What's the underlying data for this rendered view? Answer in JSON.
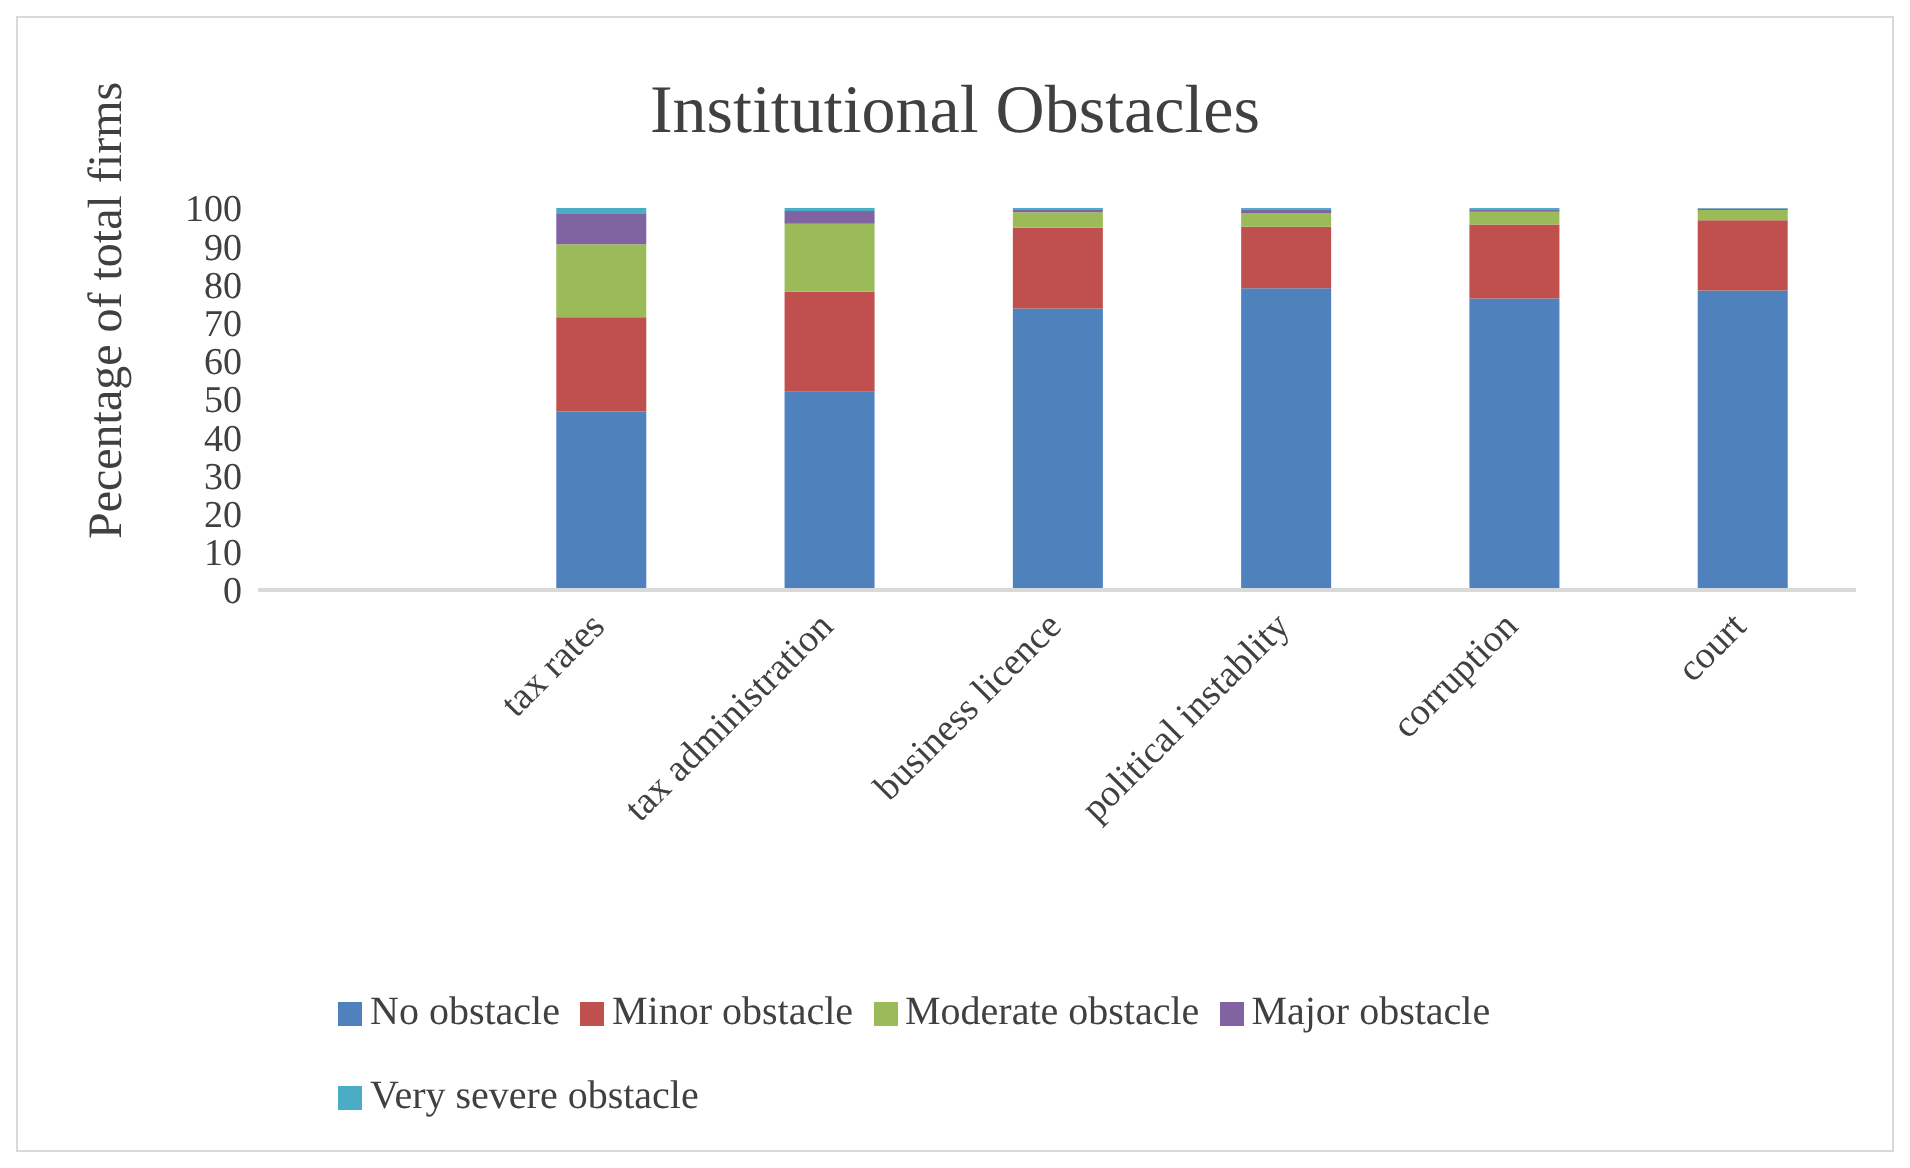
{
  "chart_data": {
    "type": "bar",
    "title": "Institutional Obstacles",
    "ylabel": "Pecentage of total firms",
    "categories": [
      null,
      "tax rates",
      "tax administration",
      "business licence",
      "political instablity",
      "corruption",
      "court"
    ],
    "stacked": true,
    "ylim": [
      0,
      100
    ],
    "yticks": [
      0,
      10,
      20,
      30,
      40,
      50,
      60,
      70,
      80,
      90,
      100
    ],
    "grid": false,
    "legend": "bottom",
    "series": [
      {
        "name": "No obstacle",
        "color": "#4f81bd",
        "values": [
          null,
          46.7,
          51.9,
          73.7,
          79.0,
          76.3,
          78.4
        ]
      },
      {
        "name": "Minor obstacle",
        "color": "#c0504d",
        "values": [
          null,
          24.7,
          26.2,
          21.1,
          16.1,
          19.4,
          18.4
        ]
      },
      {
        "name": "Moderate obstacle",
        "color": "#9bbb59",
        "values": [
          null,
          19.1,
          17.8,
          4.1,
          3.6,
          3.3,
          2.7
        ]
      },
      {
        "name": "Major obstacle",
        "color": "#8064a2",
        "values": [
          null,
          7.9,
          3.3,
          0.6,
          1.0,
          0.7,
          0.4
        ]
      },
      {
        "name": "Very severe obstacle",
        "color": "#4bacc6",
        "values": [
          null,
          1.6,
          0.8,
          0.5,
          0.3,
          0.3,
          0.1
        ]
      }
    ]
  }
}
